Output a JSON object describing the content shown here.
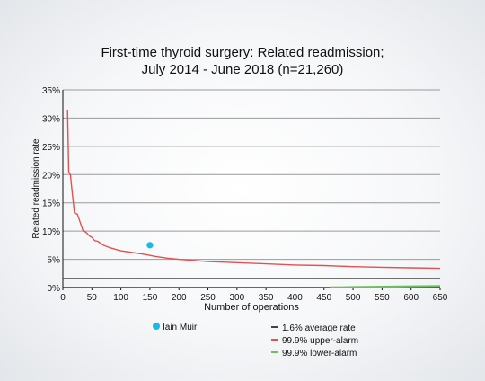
{
  "chart_data": {
    "type": "line",
    "title_line1": "First-time thyroid surgery: Related readmission;",
    "title_line2": "July 2014 - June 2018 (n=21,260)",
    "xlabel": "Number of operations",
    "ylabel": "Related readmission rate",
    "xlim": [
      0,
      650
    ],
    "ylim": [
      0,
      35
    ],
    "x_ticks": [
      0,
      50,
      100,
      150,
      200,
      250,
      300,
      350,
      400,
      450,
      500,
      550,
      600,
      650
    ],
    "y_ticks": [
      0,
      5,
      10,
      15,
      20,
      25,
      30,
      35
    ],
    "y_tick_labels": [
      "0%",
      "5%",
      "10%",
      "15%",
      "20%",
      "25%",
      "30%",
      "35%"
    ],
    "grid": "horizontal",
    "legend_position": "bottom",
    "series": [
      {
        "name": "1.6% average rate",
        "color": "#444444",
        "x": [
          0,
          650
        ],
        "y": [
          1.6,
          1.6
        ]
      },
      {
        "name": "99.9% upper-alarm",
        "color": "#e05252",
        "x": [
          8,
          10,
          13,
          16,
          20,
          25,
          30,
          35,
          40,
          45,
          50,
          55,
          60,
          70,
          80,
          90,
          100,
          120,
          140,
          160,
          180,
          200,
          250,
          300,
          350,
          400,
          450,
          500,
          550,
          600,
          650
        ],
        "y": [
          31.5,
          20.5,
          20.0,
          17.0,
          13.2,
          13.0,
          11.5,
          10.0,
          9.8,
          9.2,
          8.9,
          8.3,
          8.2,
          7.5,
          7.1,
          6.8,
          6.5,
          6.2,
          5.9,
          5.5,
          5.2,
          5.0,
          4.6,
          4.4,
          4.2,
          4.0,
          3.9,
          3.7,
          3.6,
          3.5,
          3.4
        ]
      },
      {
        "name": "99.9% lower-alarm",
        "color": "#6dbf5b",
        "x": [
          460,
          500,
          550,
          600,
          650
        ],
        "y": [
          0.02,
          0.08,
          0.15,
          0.2,
          0.25
        ]
      }
    ],
    "points": [
      {
        "name": "Iain Muir",
        "x": 150,
        "y": 7.5,
        "color": "#1ab8e8"
      }
    ]
  }
}
